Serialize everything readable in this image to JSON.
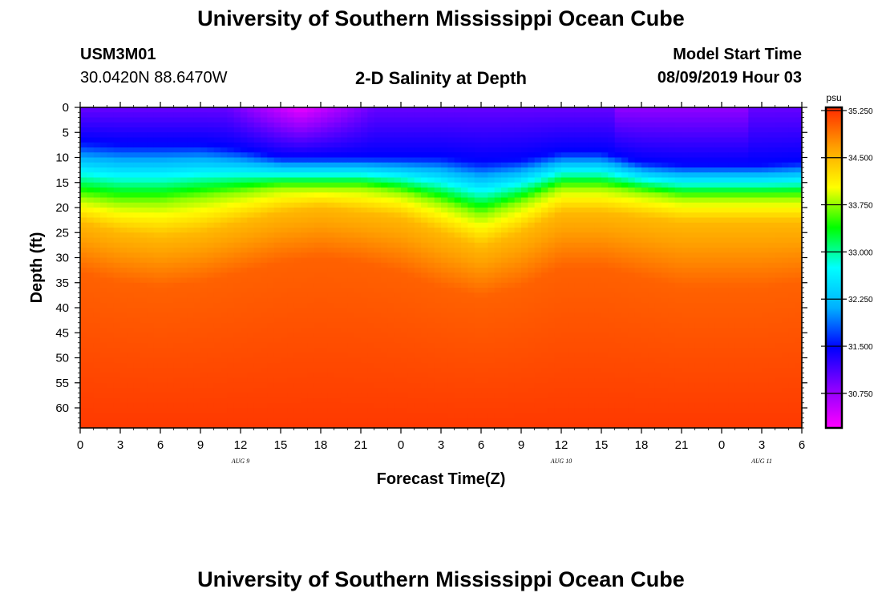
{
  "header": {
    "title": "University of Southern Mississippi Ocean Cube",
    "station_id": "USM3M01",
    "coordinates": "30.0420N 88.6470W",
    "plot_title": "2-D Salinity at Depth",
    "model_start_label": "Model Start Time",
    "model_start_value": "08/09/2019 Hour 03"
  },
  "footer": {
    "title": "University of Southern Mississippi Ocean Cube"
  },
  "chart_data": {
    "type": "heatmap",
    "title": "2-D Salinity at Depth",
    "xlabel": "Forecast Time(Z)",
    "ylabel": "Depth (ft)",
    "xlim": [
      0,
      54
    ],
    "ylim": [
      64,
      0
    ],
    "x_ticks": [
      "0",
      "3",
      "6",
      "9",
      "12",
      "15",
      "18",
      "21",
      "0",
      "3",
      "6",
      "9",
      "12",
      "15",
      "18",
      "21",
      "0",
      "3",
      "6"
    ],
    "y_ticks": [
      "0",
      "5",
      "10",
      "15",
      "20",
      "25",
      "30",
      "35",
      "40",
      "45",
      "50",
      "55",
      "60"
    ],
    "date_labels": [
      {
        "text": "AUG 9",
        "x": 12
      },
      {
        "text": "AUG 10",
        "x": 36
      },
      {
        "text": "AUG 11",
        "x": 51
      }
    ],
    "colorbar": {
      "unit": "psu",
      "range": [
        30.2,
        35.3
      ],
      "ticks": [
        "35.250",
        "34.500",
        "33.750",
        "33.000",
        "32.250",
        "31.500",
        "30.750"
      ],
      "colors": [
        "#ff00ff",
        "#8a00ff",
        "#0000ff",
        "#00b0ff",
        "#00ffff",
        "#00ff00",
        "#ffff00",
        "#ffa000",
        "#ff2a00"
      ]
    },
    "contour_depths_ft": {
      "hours": [
        0,
        3,
        6,
        9,
        12,
        15,
        18,
        21,
        24,
        27,
        30,
        33,
        36,
        39,
        42,
        45,
        48,
        51,
        54
      ],
      "salinity_31.5": [
        7,
        7.5,
        7.5,
        7.5,
        8.5,
        10,
        10,
        10,
        10,
        10,
        11,
        10.5,
        9,
        9,
        11,
        11.5,
        11.5,
        11.5,
        11
      ],
      "salinity_33.75": [
        18,
        19,
        19,
        18,
        17,
        16,
        16,
        16,
        17,
        19,
        21.5,
        19,
        16,
        16,
        17,
        18,
        18,
        18,
        18
      ],
      "salinity_34.5": [
        23,
        25,
        26,
        25,
        23,
        21,
        20,
        21,
        22,
        25,
        28,
        25,
        21,
        21,
        22,
        23,
        23,
        23,
        23
      ],
      "salinity_35.0": [
        33,
        35,
        36,
        35,
        33,
        31,
        30,
        31,
        33,
        36,
        38,
        36,
        32,
        32,
        34,
        36,
        36,
        36,
        35
      ]
    },
    "surface_min_zone": {
      "hours": [
        13,
        20
      ],
      "depth_ft": [
        0,
        5
      ],
      "salinity": 30.3
    }
  }
}
